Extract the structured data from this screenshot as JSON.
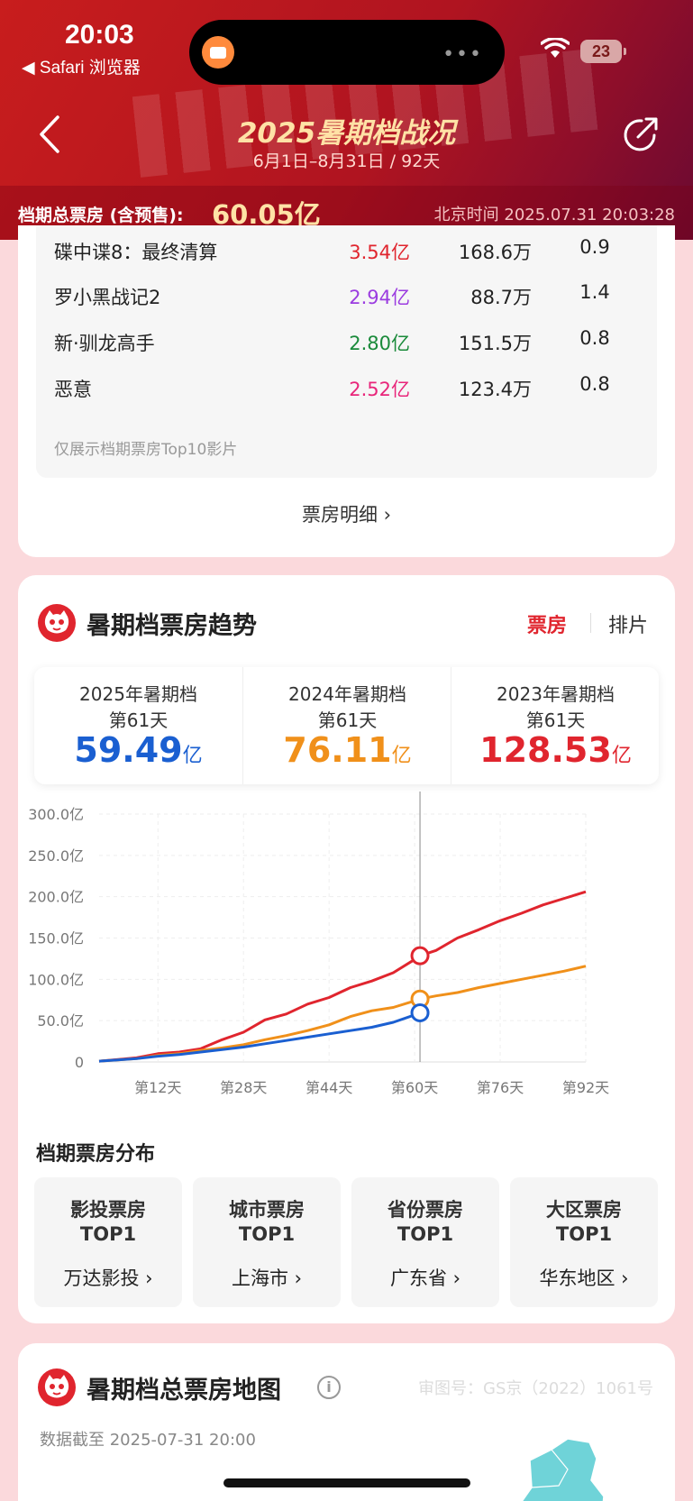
{
  "status": {
    "time": "20:03",
    "back_app": "◀ Safari 浏览器",
    "battery": "23"
  },
  "header": {
    "title": "2025暑期档战况",
    "subtitle": "6月1日–8月31日 / 92天",
    "summary_label": "档期总票房 (含预售):",
    "summary_value": "60.05亿",
    "beijing_time": "北京时间 2025.07.31 20:03:28"
  },
  "ranking": {
    "rows": [
      {
        "name": "碟中谍8：最终清算",
        "gross": "3.54亿",
        "gross_color": "#e0252e",
        "viewers": "168.6万",
        "avg": "0.9"
      },
      {
        "name": "罗小黑战记2",
        "gross": "2.94亿",
        "gross_color": "#9b3ce0",
        "viewers": "88.7万",
        "avg": "1.4"
      },
      {
        "name": "新·驯龙高手",
        "gross": "2.80亿",
        "gross_color": "#1a8a3a",
        "viewers": "151.5万",
        "avg": "0.8"
      },
      {
        "name": "恶意",
        "gross": "2.52亿",
        "gross_color": "#e8257a",
        "viewers": "123.4万",
        "avg": "0.8"
      }
    ],
    "note": "仅展示档期票房Top10影片",
    "detail_link": "票房明细 ›"
  },
  "trend": {
    "title": "暑期档票房趋势",
    "toggle_active": "票房",
    "toggle_inactive": "排片",
    "stats": [
      {
        "line1": "2025年暑期档",
        "line2": "第61天",
        "value": "59.49",
        "unit": "亿",
        "color": "#1a5fd1"
      },
      {
        "line1": "2024年暑期档",
        "line2": "第61天",
        "value": "76.11",
        "unit": "亿",
        "color": "#f0901a"
      },
      {
        "line1": "2023年暑期档",
        "line2": "第61天",
        "value": "128.53",
        "unit": "亿",
        "color": "#e0252e"
      }
    ]
  },
  "chart_data": {
    "type": "line",
    "x_ticks": [
      "第12天",
      "第28天",
      "第44天",
      "第60天",
      "第76天",
      "第92天"
    ],
    "y_ticks": [
      "0",
      "50.0亿",
      "100.0亿",
      "150.0亿",
      "200.0亿",
      "250.0亿",
      "300.0亿"
    ],
    "xlim": [
      1,
      92
    ],
    "ylim": [
      0,
      300
    ],
    "marker_day": 61,
    "series": [
      {
        "color": "#e0252e",
        "points": [
          [
            1,
            1
          ],
          [
            8,
            5
          ],
          [
            12,
            10
          ],
          [
            16,
            12
          ],
          [
            20,
            16
          ],
          [
            24,
            27
          ],
          [
            28,
            36
          ],
          [
            32,
            51
          ],
          [
            36,
            58
          ],
          [
            40,
            70
          ],
          [
            44,
            78
          ],
          [
            48,
            90
          ],
          [
            52,
            98
          ],
          [
            56,
            108
          ],
          [
            60,
            124
          ],
          [
            61,
            128.53
          ],
          [
            64,
            135
          ],
          [
            68,
            150
          ],
          [
            72,
            160
          ],
          [
            76,
            171
          ],
          [
            80,
            180
          ],
          [
            84,
            190
          ],
          [
            88,
            198
          ],
          [
            92,
            206
          ]
        ]
      },
      {
        "color": "#f0901a",
        "points": [
          [
            1,
            1
          ],
          [
            8,
            4
          ],
          [
            12,
            8
          ],
          [
            16,
            10
          ],
          [
            20,
            14
          ],
          [
            24,
            17
          ],
          [
            28,
            21
          ],
          [
            32,
            27
          ],
          [
            36,
            32
          ],
          [
            40,
            38
          ],
          [
            44,
            45
          ],
          [
            48,
            55
          ],
          [
            52,
            62
          ],
          [
            56,
            66
          ],
          [
            60,
            74
          ],
          [
            61,
            76.11
          ],
          [
            64,
            80
          ],
          [
            68,
            84
          ],
          [
            72,
            90
          ],
          [
            76,
            95
          ],
          [
            80,
            100
          ],
          [
            84,
            105
          ],
          [
            88,
            110
          ],
          [
            92,
            116
          ]
        ]
      },
      {
        "color": "#1a5fd1",
        "points": [
          [
            1,
            1
          ],
          [
            8,
            4
          ],
          [
            12,
            7
          ],
          [
            16,
            9
          ],
          [
            20,
            12
          ],
          [
            24,
            15
          ],
          [
            28,
            18
          ],
          [
            32,
            22
          ],
          [
            36,
            26
          ],
          [
            40,
            30
          ],
          [
            44,
            34
          ],
          [
            48,
            38
          ],
          [
            52,
            42
          ],
          [
            56,
            48
          ],
          [
            60,
            57
          ],
          [
            61,
            59.49
          ]
        ]
      }
    ]
  },
  "distribution": {
    "title": "档期票房分布",
    "cards": [
      {
        "t1": "影投票房",
        "t2": "TOP1",
        "value": "万达影投 ›"
      },
      {
        "t1": "城市票房",
        "t2": "TOP1",
        "value": "上海市 ›"
      },
      {
        "t1": "省份票房",
        "t2": "TOP1",
        "value": "广东省 ›"
      },
      {
        "t1": "大区票房",
        "t2": "TOP1",
        "value": "华东地区 ›"
      }
    ]
  },
  "map": {
    "title": "暑期档总票房地图",
    "code": "审图号：GS京（2022）1061号",
    "date": "数据截至 2025-07-31 20:00"
  }
}
